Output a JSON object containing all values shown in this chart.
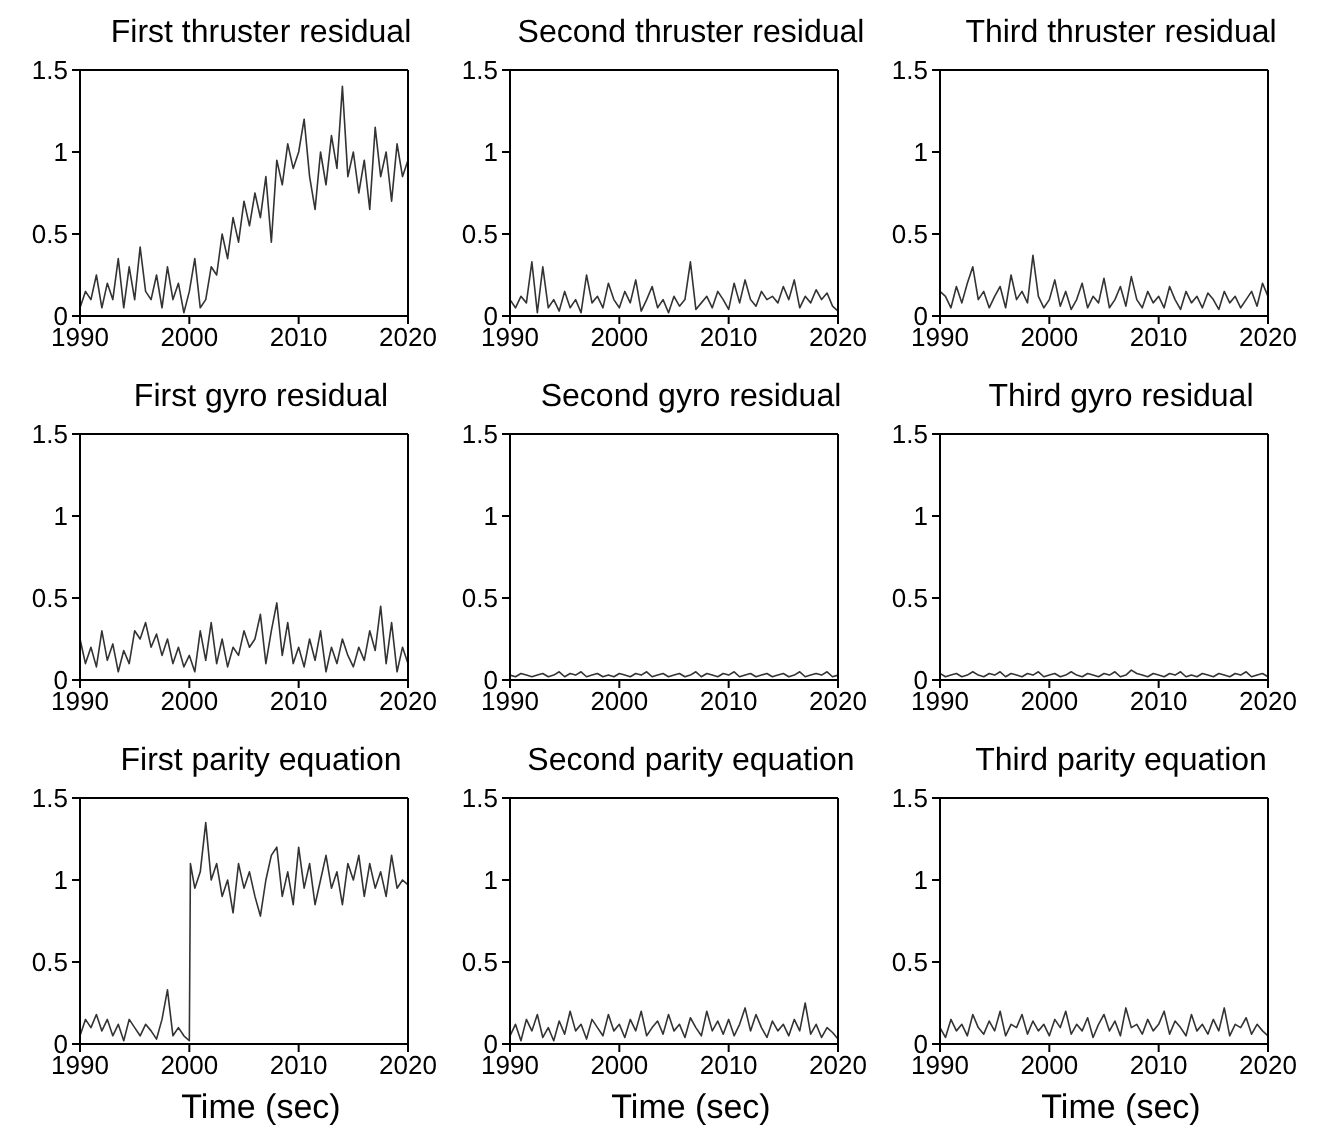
{
  "chart_data": [
    {
      "type": "line",
      "title": "First thruster residual",
      "color": "#333333",
      "xlim": [
        1990,
        2020
      ],
      "xticks": [
        1990,
        2000,
        2010,
        2020
      ],
      "ylim": [
        0,
        1.5
      ],
      "yticks": [
        0,
        0.5,
        1,
        1.5
      ],
      "x": [
        1990,
        1990.5,
        1991,
        1991.5,
        1992,
        1992.5,
        1993,
        1993.5,
        1994,
        1994.5,
        1995,
        1995.5,
        1996,
        1996.5,
        1997,
        1997.5,
        1998,
        1998.5,
        1999,
        1999.5,
        2000,
        2000.5,
        2001,
        2001.5,
        2002,
        2002.5,
        2003,
        2003.5,
        2004,
        2004.5,
        2005,
        2005.5,
        2006,
        2006.5,
        2007,
        2007.5,
        2008,
        2008.5,
        2009,
        2009.5,
        2010,
        2010.5,
        2011,
        2011.5,
        2012,
        2012.5,
        2013,
        2013.5,
        2014,
        2014.5,
        2015,
        2015.5,
        2016,
        2016.5,
        2017,
        2017.5,
        2018,
        2018.5,
        2019,
        2019.5,
        2020
      ],
      "values": [
        0.05,
        0.15,
        0.1,
        0.25,
        0.05,
        0.2,
        0.1,
        0.35,
        0.05,
        0.3,
        0.1,
        0.42,
        0.15,
        0.1,
        0.25,
        0.05,
        0.3,
        0.1,
        0.2,
        0.02,
        0.15,
        0.35,
        0.05,
        0.1,
        0.3,
        0.25,
        0.5,
        0.35,
        0.6,
        0.45,
        0.7,
        0.55,
        0.75,
        0.6,
        0.85,
        0.45,
        0.95,
        0.8,
        1.05,
        0.9,
        1.0,
        1.2,
        0.85,
        0.65,
        1.0,
        0.8,
        1.1,
        0.9,
        1.4,
        0.85,
        1.0,
        0.75,
        0.95,
        0.65,
        1.15,
        0.85,
        1.0,
        0.7,
        1.05,
        0.85,
        0.95
      ]
    },
    {
      "type": "line",
      "title": "Second thruster residual",
      "color": "#333333",
      "xlim": [
        1990,
        2020
      ],
      "xticks": [
        1990,
        2000,
        2010,
        2020
      ],
      "ylim": [
        0,
        1.5
      ],
      "yticks": [
        0,
        0.5,
        1,
        1.5
      ],
      "x": [
        1990,
        1990.5,
        1991,
        1991.5,
        1992,
        1992.5,
        1993,
        1993.5,
        1994,
        1994.5,
        1995,
        1995.5,
        1996,
        1996.5,
        1997,
        1997.5,
        1998,
        1998.5,
        1999,
        1999.5,
        2000,
        2000.5,
        2001,
        2001.5,
        2002,
        2002.5,
        2003,
        2003.5,
        2004,
        2004.5,
        2005,
        2005.5,
        2006,
        2006.5,
        2007,
        2007.5,
        2008,
        2008.5,
        2009,
        2009.5,
        2010,
        2010.5,
        2011,
        2011.5,
        2012,
        2012.5,
        2013,
        2013.5,
        2014,
        2014.5,
        2015,
        2015.5,
        2016,
        2016.5,
        2017,
        2017.5,
        2018,
        2018.5,
        2019,
        2019.5,
        2020
      ],
      "values": [
        0.1,
        0.05,
        0.12,
        0.08,
        0.33,
        0.02,
        0.3,
        0.05,
        0.1,
        0.03,
        0.15,
        0.05,
        0.1,
        0.02,
        0.25,
        0.08,
        0.12,
        0.05,
        0.2,
        0.1,
        0.05,
        0.15,
        0.08,
        0.22,
        0.03,
        0.1,
        0.18,
        0.05,
        0.1,
        0.02,
        0.12,
        0.06,
        0.1,
        0.33,
        0.04,
        0.08,
        0.12,
        0.05,
        0.15,
        0.1,
        0.04,
        0.2,
        0.08,
        0.22,
        0.1,
        0.06,
        0.15,
        0.1,
        0.12,
        0.08,
        0.18,
        0.1,
        0.22,
        0.05,
        0.12,
        0.08,
        0.16,
        0.1,
        0.14,
        0.06,
        0.03
      ]
    },
    {
      "type": "line",
      "title": "Third thruster residual",
      "color": "#333333",
      "xlim": [
        1990,
        2020
      ],
      "xticks": [
        1990,
        2000,
        2010,
        2020
      ],
      "ylim": [
        0,
        1.5
      ],
      "yticks": [
        0,
        0.5,
        1,
        1.5
      ],
      "x": [
        1990,
        1990.5,
        1991,
        1991.5,
        1992,
        1992.5,
        1993,
        1993.5,
        1994,
        1994.5,
        1995,
        1995.5,
        1996,
        1996.5,
        1997,
        1997.5,
        1998,
        1998.5,
        1999,
        1999.5,
        2000,
        2000.5,
        2001,
        2001.5,
        2002,
        2002.5,
        2003,
        2003.5,
        2004,
        2004.5,
        2005,
        2005.5,
        2006,
        2006.5,
        2007,
        2007.5,
        2008,
        2008.5,
        2009,
        2009.5,
        2010,
        2010.5,
        2011,
        2011.5,
        2012,
        2012.5,
        2013,
        2013.5,
        2014,
        2014.5,
        2015,
        2015.5,
        2016,
        2016.5,
        2017,
        2017.5,
        2018,
        2018.5,
        2019,
        2019.5,
        2020
      ],
      "values": [
        0.15,
        0.12,
        0.05,
        0.18,
        0.08,
        0.2,
        0.3,
        0.1,
        0.15,
        0.05,
        0.12,
        0.18,
        0.05,
        0.25,
        0.1,
        0.15,
        0.08,
        0.37,
        0.12,
        0.05,
        0.1,
        0.22,
        0.06,
        0.15,
        0.04,
        0.1,
        0.2,
        0.05,
        0.12,
        0.08,
        0.23,
        0.05,
        0.1,
        0.18,
        0.06,
        0.24,
        0.1,
        0.05,
        0.15,
        0.08,
        0.12,
        0.05,
        0.18,
        0.1,
        0.04,
        0.15,
        0.08,
        0.12,
        0.05,
        0.14,
        0.1,
        0.04,
        0.15,
        0.08,
        0.12,
        0.05,
        0.1,
        0.15,
        0.06,
        0.2,
        0.12
      ]
    },
    {
      "type": "line",
      "title": "First gyro residual",
      "color": "#333333",
      "xlim": [
        1990,
        2020
      ],
      "xticks": [
        1990,
        2000,
        2010,
        2020
      ],
      "ylim": [
        0,
        1.5
      ],
      "yticks": [
        0,
        0.5,
        1,
        1.5
      ],
      "x": [
        1990,
        1990.5,
        1991,
        1991.5,
        1992,
        1992.5,
        1993,
        1993.5,
        1994,
        1994.5,
        1995,
        1995.5,
        1996,
        1996.5,
        1997,
        1997.5,
        1998,
        1998.5,
        1999,
        1999.5,
        2000,
        2000.5,
        2001,
        2001.5,
        2002,
        2002.5,
        2003,
        2003.5,
        2004,
        2004.5,
        2005,
        2005.5,
        2006,
        2006.5,
        2007,
        2007.5,
        2008,
        2008.5,
        2009,
        2009.5,
        2010,
        2010.5,
        2011,
        2011.5,
        2012,
        2012.5,
        2013,
        2013.5,
        2014,
        2014.5,
        2015,
        2015.5,
        2016,
        2016.5,
        2017,
        2017.5,
        2018,
        2018.5,
        2019,
        2019.5,
        2020
      ],
      "values": [
        0.25,
        0.1,
        0.2,
        0.08,
        0.3,
        0.12,
        0.22,
        0.05,
        0.18,
        0.1,
        0.3,
        0.25,
        0.35,
        0.2,
        0.28,
        0.15,
        0.25,
        0.1,
        0.2,
        0.08,
        0.15,
        0.05,
        0.3,
        0.12,
        0.35,
        0.1,
        0.25,
        0.08,
        0.2,
        0.15,
        0.3,
        0.2,
        0.25,
        0.4,
        0.1,
        0.3,
        0.47,
        0.15,
        0.35,
        0.1,
        0.2,
        0.08,
        0.25,
        0.12,
        0.3,
        0.05,
        0.2,
        0.1,
        0.25,
        0.15,
        0.08,
        0.2,
        0.12,
        0.3,
        0.18,
        0.45,
        0.1,
        0.35,
        0.05,
        0.2,
        0.1
      ]
    },
    {
      "type": "line",
      "title": "Second gyro residual",
      "color": "#333333",
      "xlim": [
        1990,
        2020
      ],
      "xticks": [
        1990,
        2000,
        2010,
        2020
      ],
      "ylim": [
        0,
        1.5
      ],
      "yticks": [
        0,
        0.5,
        1,
        1.5
      ],
      "x": [
        1990,
        1990.5,
        1991,
        1991.5,
        1992,
        1992.5,
        1993,
        1993.5,
        1994,
        1994.5,
        1995,
        1995.5,
        1996,
        1996.5,
        1997,
        1997.5,
        1998,
        1998.5,
        1999,
        1999.5,
        2000,
        2000.5,
        2001,
        2001.5,
        2002,
        2002.5,
        2003,
        2003.5,
        2004,
        2004.5,
        2005,
        2005.5,
        2006,
        2006.5,
        2007,
        2007.5,
        2008,
        2008.5,
        2009,
        2009.5,
        2010,
        2010.5,
        2011,
        2011.5,
        2012,
        2012.5,
        2013,
        2013.5,
        2014,
        2014.5,
        2015,
        2015.5,
        2016,
        2016.5,
        2017,
        2017.5,
        2018,
        2018.5,
        2019,
        2019.5,
        2020
      ],
      "values": [
        0.03,
        0.02,
        0.04,
        0.03,
        0.02,
        0.03,
        0.04,
        0.02,
        0.03,
        0.05,
        0.02,
        0.04,
        0.03,
        0.05,
        0.02,
        0.03,
        0.04,
        0.02,
        0.03,
        0.02,
        0.04,
        0.03,
        0.02,
        0.04,
        0.03,
        0.05,
        0.02,
        0.03,
        0.04,
        0.02,
        0.03,
        0.04,
        0.02,
        0.03,
        0.05,
        0.02,
        0.04,
        0.03,
        0.02,
        0.04,
        0.03,
        0.05,
        0.02,
        0.03,
        0.04,
        0.02,
        0.03,
        0.04,
        0.02,
        0.03,
        0.04,
        0.02,
        0.03,
        0.05,
        0.02,
        0.03,
        0.04,
        0.03,
        0.05,
        0.02,
        0.03
      ]
    },
    {
      "type": "line",
      "title": "Third gyro residual",
      "color": "#333333",
      "xlim": [
        1990,
        2020
      ],
      "xticks": [
        1990,
        2000,
        2010,
        2020
      ],
      "ylim": [
        0,
        1.5
      ],
      "yticks": [
        0,
        0.5,
        1,
        1.5
      ],
      "x": [
        1990,
        1990.5,
        1991,
        1991.5,
        1992,
        1992.5,
        1993,
        1993.5,
        1994,
        1994.5,
        1995,
        1995.5,
        1996,
        1996.5,
        1997,
        1997.5,
        1998,
        1998.5,
        1999,
        1999.5,
        2000,
        2000.5,
        2001,
        2001.5,
        2002,
        2002.5,
        2003,
        2003.5,
        2004,
        2004.5,
        2005,
        2005.5,
        2006,
        2006.5,
        2007,
        2007.5,
        2008,
        2008.5,
        2009,
        2009.5,
        2010,
        2010.5,
        2011,
        2011.5,
        2012,
        2012.5,
        2013,
        2013.5,
        2014,
        2014.5,
        2015,
        2015.5,
        2016,
        2016.5,
        2017,
        2017.5,
        2018,
        2018.5,
        2019,
        2019.5,
        2020
      ],
      "values": [
        0.04,
        0.02,
        0.03,
        0.04,
        0.02,
        0.03,
        0.05,
        0.03,
        0.02,
        0.04,
        0.03,
        0.05,
        0.02,
        0.04,
        0.03,
        0.02,
        0.04,
        0.03,
        0.05,
        0.02,
        0.03,
        0.04,
        0.02,
        0.03,
        0.05,
        0.03,
        0.02,
        0.04,
        0.03,
        0.02,
        0.04,
        0.03,
        0.05,
        0.02,
        0.03,
        0.06,
        0.04,
        0.03,
        0.02,
        0.04,
        0.03,
        0.02,
        0.04,
        0.03,
        0.05,
        0.02,
        0.03,
        0.02,
        0.04,
        0.03,
        0.02,
        0.04,
        0.03,
        0.02,
        0.04,
        0.03,
        0.05,
        0.02,
        0.03,
        0.04,
        0.02
      ]
    },
    {
      "type": "line",
      "title": "First parity equation",
      "xlabel": "Time (sec)",
      "color": "#333333",
      "xlim": [
        1990,
        2020
      ],
      "xticks": [
        1990,
        2000,
        2010,
        2020
      ],
      "ylim": [
        0,
        1.5
      ],
      "yticks": [
        0,
        0.5,
        1,
        1.5
      ],
      "x": [
        1990,
        1990.5,
        1991,
        1991.5,
        1992,
        1992.5,
        1993,
        1993.5,
        1994,
        1994.5,
        1995,
        1995.5,
        1996,
        1996.5,
        1997,
        1997.5,
        1998,
        1998.5,
        1999,
        1999.5,
        2000,
        2000.1,
        2000.5,
        2001,
        2001.5,
        2002,
        2002.5,
        2003,
        2003.5,
        2004,
        2004.5,
        2005,
        2005.5,
        2006,
        2006.5,
        2007,
        2007.5,
        2008,
        2008.5,
        2009,
        2009.5,
        2010,
        2010.5,
        2011,
        2011.5,
        2012,
        2012.5,
        2013,
        2013.5,
        2014,
        2014.5,
        2015,
        2015.5,
        2016,
        2016.5,
        2017,
        2017.5,
        2018,
        2018.5,
        2019,
        2019.5,
        2020
      ],
      "values": [
        0.05,
        0.15,
        0.1,
        0.18,
        0.08,
        0.15,
        0.05,
        0.12,
        0.02,
        0.15,
        0.1,
        0.05,
        0.12,
        0.08,
        0.03,
        0.15,
        0.33,
        0.05,
        0.1,
        0.05,
        0.02,
        1.1,
        0.95,
        1.05,
        1.35,
        1.0,
        1.1,
        0.9,
        1.0,
        0.8,
        1.1,
        0.95,
        1.05,
        0.9,
        0.78,
        1.0,
        1.15,
        1.2,
        0.9,
        1.05,
        0.85,
        1.2,
        0.95,
        1.1,
        0.85,
        1.0,
        1.15,
        0.95,
        1.05,
        0.85,
        1.1,
        1.0,
        1.15,
        0.9,
        1.1,
        0.95,
        1.05,
        0.9,
        1.15,
        0.95,
        1.0,
        0.97
      ]
    },
    {
      "type": "line",
      "title": "Second parity equation",
      "xlabel": "Time (sec)",
      "color": "#333333",
      "xlim": [
        1990,
        2020
      ],
      "xticks": [
        1990,
        2000,
        2010,
        2020
      ],
      "ylim": [
        0,
        1.5
      ],
      "yticks": [
        0,
        0.5,
        1,
        1.5
      ],
      "x": [
        1990,
        1990.5,
        1991,
        1991.5,
        1992,
        1992.5,
        1993,
        1993.5,
        1994,
        1994.5,
        1995,
        1995.5,
        1996,
        1996.5,
        1997,
        1997.5,
        1998,
        1998.5,
        1999,
        1999.5,
        2000,
        2000.5,
        2001,
        2001.5,
        2002,
        2002.5,
        2003,
        2003.5,
        2004,
        2004.5,
        2005,
        2005.5,
        2006,
        2006.5,
        2007,
        2007.5,
        2008,
        2008.5,
        2009,
        2009.5,
        2010,
        2010.5,
        2011,
        2011.5,
        2012,
        2012.5,
        2013,
        2013.5,
        2014,
        2014.5,
        2015,
        2015.5,
        2016,
        2016.5,
        2017,
        2017.5,
        2018,
        2018.5,
        2019,
        2019.5,
        2020
      ],
      "values": [
        0.05,
        0.12,
        0.02,
        0.15,
        0.08,
        0.18,
        0.04,
        0.1,
        0.02,
        0.14,
        0.06,
        0.2,
        0.08,
        0.12,
        0.03,
        0.15,
        0.1,
        0.05,
        0.18,
        0.08,
        0.12,
        0.04,
        0.15,
        0.08,
        0.2,
        0.05,
        0.1,
        0.14,
        0.06,
        0.18,
        0.08,
        0.12,
        0.04,
        0.16,
        0.1,
        0.05,
        0.2,
        0.08,
        0.14,
        0.06,
        0.15,
        0.05,
        0.12,
        0.22,
        0.08,
        0.18,
        0.1,
        0.04,
        0.14,
        0.08,
        0.12,
        0.05,
        0.15,
        0.08,
        0.25,
        0.06,
        0.12,
        0.04,
        0.1,
        0.07,
        0.03
      ]
    },
    {
      "type": "line",
      "title": "Third parity equation",
      "xlabel": "Time (sec)",
      "color": "#333333",
      "xlim": [
        1990,
        2020
      ],
      "xticks": [
        1990,
        2000,
        2010,
        2020
      ],
      "ylim": [
        0,
        1.5
      ],
      "yticks": [
        0,
        0.5,
        1,
        1.5
      ],
      "x": [
        1990,
        1990.5,
        1991,
        1991.5,
        1992,
        1992.5,
        1993,
        1993.5,
        1994,
        1994.5,
        1995,
        1995.5,
        1996,
        1996.5,
        1997,
        1997.5,
        1998,
        1998.5,
        1999,
        1999.5,
        2000,
        2000.5,
        2001,
        2001.5,
        2002,
        2002.5,
        2003,
        2003.5,
        2004,
        2004.5,
        2005,
        2005.5,
        2006,
        2006.5,
        2007,
        2007.5,
        2008,
        2008.5,
        2009,
        2009.5,
        2010,
        2010.5,
        2011,
        2011.5,
        2012,
        2012.5,
        2013,
        2013.5,
        2014,
        2014.5,
        2015,
        2015.5,
        2016,
        2016.5,
        2017,
        2017.5,
        2018,
        2018.5,
        2019,
        2019.5,
        2020
      ],
      "values": [
        0.1,
        0.04,
        0.15,
        0.08,
        0.12,
        0.05,
        0.18,
        0.1,
        0.06,
        0.14,
        0.08,
        0.2,
        0.05,
        0.12,
        0.1,
        0.18,
        0.06,
        0.14,
        0.08,
        0.12,
        0.05,
        0.15,
        0.1,
        0.2,
        0.06,
        0.12,
        0.08,
        0.16,
        0.04,
        0.12,
        0.18,
        0.08,
        0.14,
        0.05,
        0.22,
        0.1,
        0.12,
        0.06,
        0.15,
        0.08,
        0.12,
        0.2,
        0.06,
        0.14,
        0.1,
        0.05,
        0.18,
        0.08,
        0.12,
        0.06,
        0.15,
        0.08,
        0.22,
        0.05,
        0.12,
        0.1,
        0.16,
        0.06,
        0.12,
        0.08,
        0.05
      ]
    }
  ]
}
